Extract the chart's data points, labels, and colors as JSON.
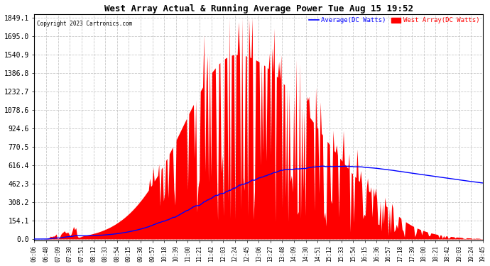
{
  "title": "West Array Actual & Running Average Power Tue Aug 15 19:52",
  "copyright": "Copyright 2023 Cartronics.com",
  "legend_avg": "Average(DC Watts)",
  "legend_west": "West Array(DC Watts)",
  "yticks": [
    0.0,
    154.1,
    308.2,
    462.3,
    616.4,
    770.5,
    924.6,
    1078.6,
    1232.7,
    1386.8,
    1540.9,
    1695.0,
    1849.1
  ],
  "ymax": 1849.1,
  "ymin": 0.0,
  "bg_color": "#ffffff",
  "grid_color": "#bbbbbb",
  "red_color": "#ff0000",
  "blue_color": "#0000ff",
  "title_color": "#000000",
  "copyright_color": "#000000",
  "avg_legend_color": "#0000ff",
  "west_legend_color": "#ff0000",
  "xtick_labels": [
    "06:06",
    "06:48",
    "07:09",
    "07:30",
    "07:51",
    "08:12",
    "08:33",
    "08:54",
    "09:15",
    "09:36",
    "09:57",
    "10:18",
    "10:39",
    "11:00",
    "11:21",
    "11:42",
    "12:03",
    "12:24",
    "12:45",
    "13:06",
    "13:27",
    "13:48",
    "14:09",
    "14:30",
    "14:51",
    "15:12",
    "15:33",
    "15:54",
    "16:15",
    "16:36",
    "16:57",
    "17:18",
    "17:39",
    "18:00",
    "18:21",
    "18:42",
    "19:03",
    "19:24",
    "19:45"
  ]
}
